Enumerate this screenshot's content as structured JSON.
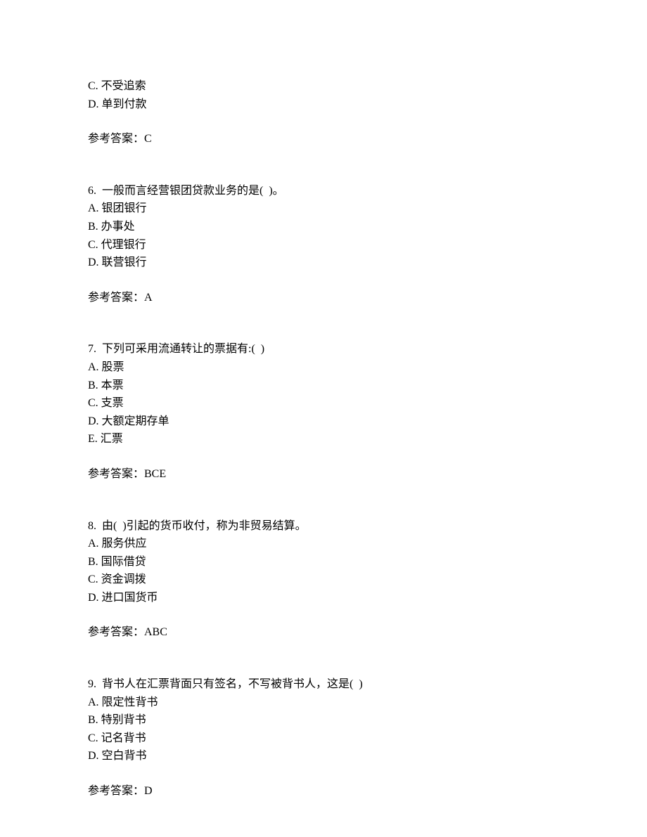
{
  "q5": {
    "option_c": "C. 不受追索",
    "option_d": "D. 单到付款",
    "answer_label": "参考答案：C"
  },
  "q6": {
    "question": "6.  一般而言经营银团贷款业务的是(  )。",
    "option_a": "A. 银团银行",
    "option_b": "B. 办事处",
    "option_c": "C. 代理银行",
    "option_d": "D. 联营银行",
    "answer_label": "参考答案：A"
  },
  "q7": {
    "question": "7.  下列可采用流通转让的票据有:(  )",
    "option_a": "A. 股票",
    "option_b": "B. 本票",
    "option_c": "C. 支票",
    "option_d": "D. 大额定期存单",
    "option_e": "E. 汇票",
    "answer_label": "参考答案：BCE"
  },
  "q8": {
    "question": "8.  由(  )引起的货币收付，称为非贸易结算。",
    "option_a": "A. 服务供应",
    "option_b": "B. 国际借贷",
    "option_c": "C. 资金调拨",
    "option_d": "D. 进口国货币",
    "answer_label": "参考答案：ABC"
  },
  "q9": {
    "question": "9.  背书人在汇票背面只有签名，不写被背书人，这是(  )",
    "option_a": "A. 限定性背书",
    "option_b": "B. 特别背书",
    "option_c": "C. 记名背书",
    "option_d": "D. 空白背书",
    "answer_label": "参考答案：D"
  }
}
